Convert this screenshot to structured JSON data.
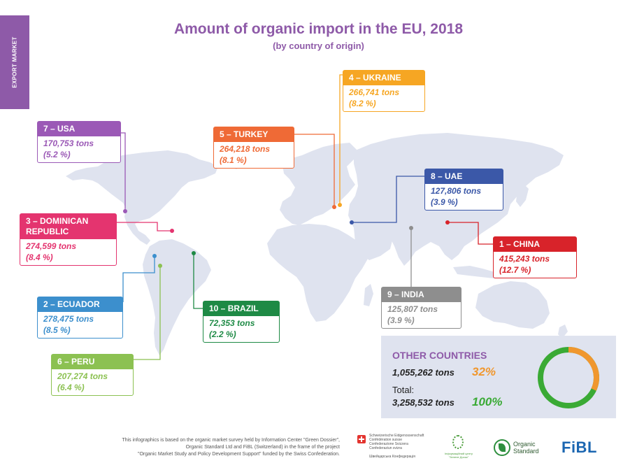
{
  "side_tab": "EXPORT MARKET",
  "title": "Amount of organic import in the EU, 2018",
  "subtitle": "(by country of origin)",
  "countries": {
    "ukraine": {
      "label": "4 – UKRAINE",
      "tons": "266,741 tons",
      "pct": "(8.2 %)",
      "color": "#f6a623"
    },
    "usa": {
      "label": "7 – USA",
      "tons": "170,753 tons",
      "pct": "(5.2 %)",
      "color": "#9b59b6"
    },
    "turkey": {
      "label": "5 – TURKEY",
      "tons": "264,218 tons",
      "pct": "(8.1 %)",
      "color": "#ef6a36"
    },
    "uae": {
      "label": "8 – UAE",
      "tons": "127,806 tons",
      "pct": "(3.9 %)",
      "color": "#3b58a8"
    },
    "dominican": {
      "label": "3 – DOMINICAN REPUBLIC",
      "tons": "274,599 tons",
      "pct": "(8.4 %)",
      "color": "#e4346f"
    },
    "china": {
      "label": "1 – CHINA",
      "tons": "415,243 tons",
      "pct": "(12.7 %)",
      "color": "#d8232a"
    },
    "ecuador": {
      "label": "2 – ECUADOR",
      "tons": "278,475  tons",
      "pct": "(8.5 %)",
      "color": "#3c8fcd"
    },
    "brazil": {
      "label": "10 – BRAZIL",
      "tons": "72,353  tons",
      "pct": "(2.2 %)",
      "color": "#1e8a45"
    },
    "india": {
      "label": "9 – INDIA",
      "tons": "125,807 tons",
      "pct": "(3.9 %)",
      "color": "#8e8e8e"
    },
    "peru": {
      "label": "6 – PERU",
      "tons": "207,274 tons",
      "pct": "(6.4 %)",
      "color": "#8cc152"
    }
  },
  "other": {
    "title": "OTHER COUNTRIES",
    "tons": "1,055,262 tons",
    "pct": "32%",
    "share": 0.32,
    "total_label": "Total:",
    "total_tons": "3,258,532 tons",
    "total_pct": "100%"
  },
  "footer": {
    "line1": "This infographics is based on the organic market survey held by Information Center \"Green Dossier\",",
    "line2": "Organic Standard Ltd and FiBL (Switzerland) in the frame of the project",
    "line3": "\"Organic Market Study and Policy Development Support\" funded by the Swiss Confederation."
  },
  "logos": {
    "swiss_lines": [
      "Schweizerische Eidgenossenschaft",
      "Confédération suisse",
      "Confederazione Svizzera",
      "Confederaziun svizra"
    ],
    "swiss_sub": "Швейцарська Конфедерація",
    "green_dossier": "Інформаційний центр \"Зелене Досьє\"",
    "organic_standard_1": "Organic",
    "organic_standard_2": "Standard",
    "fibl": "FiBL"
  }
}
